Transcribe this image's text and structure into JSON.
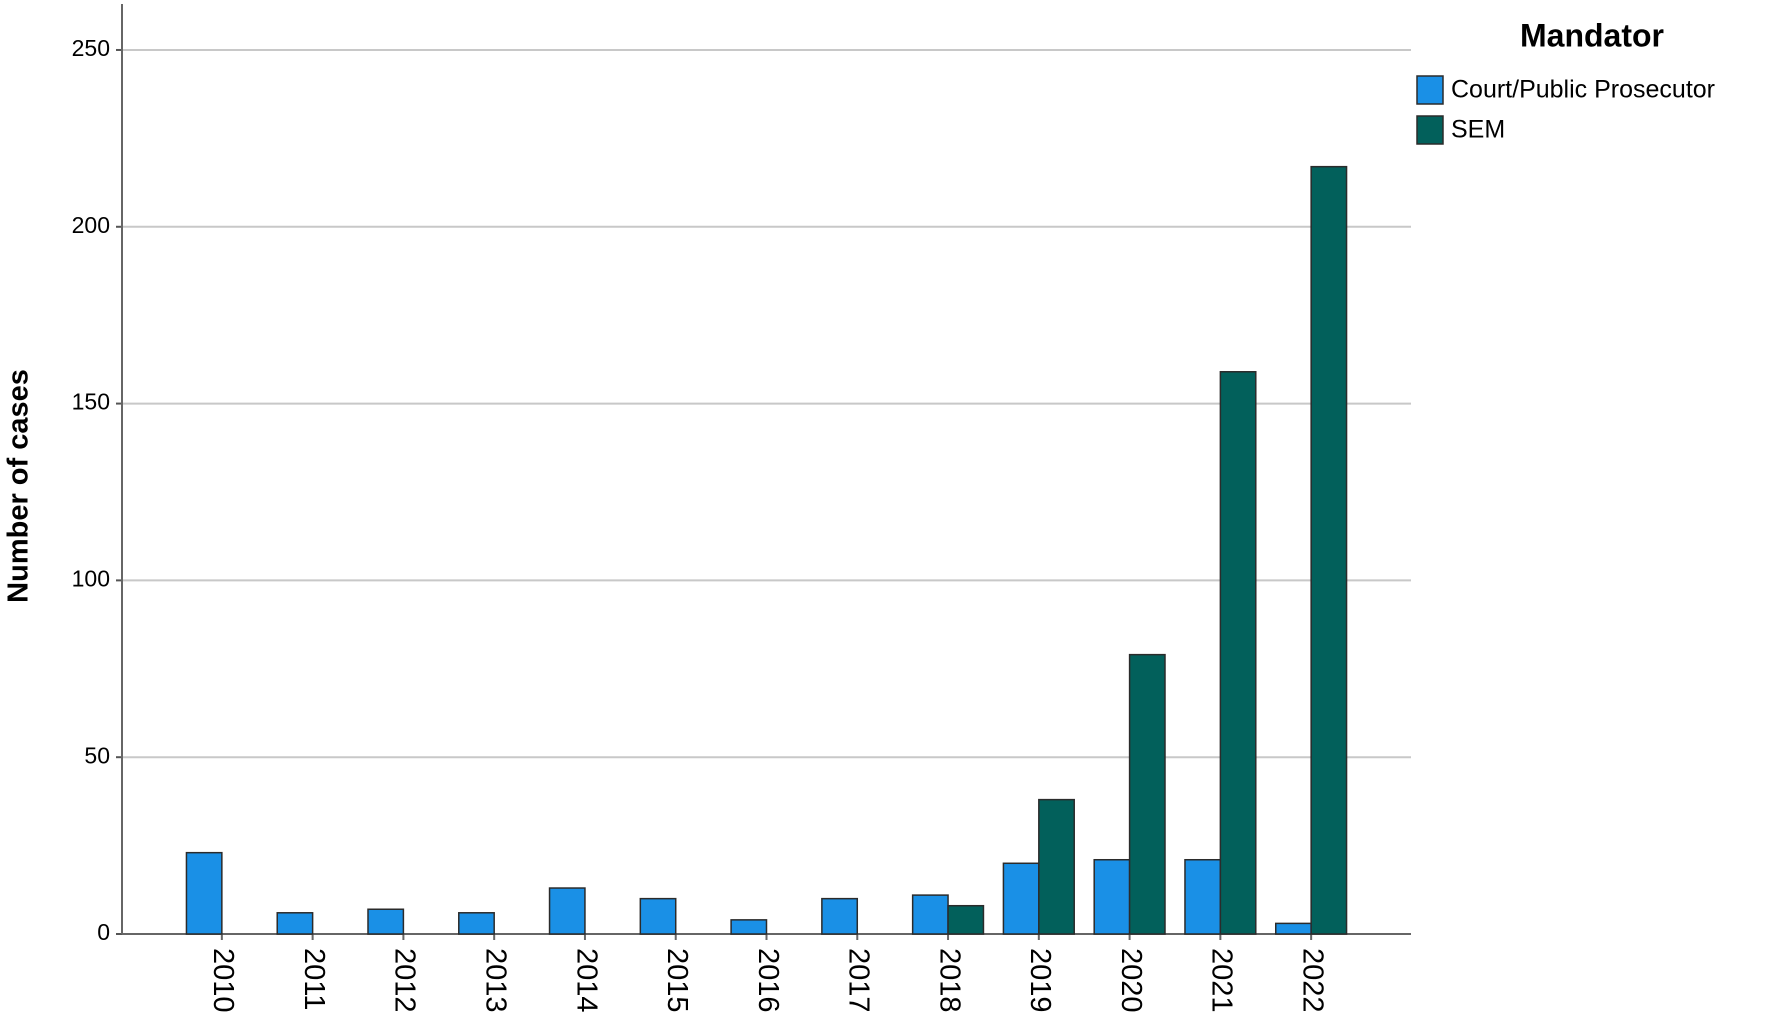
{
  "chart_data": {
    "type": "bar",
    "y_label": "Number of cases",
    "legend_title": "Mandator",
    "categories": [
      "2010",
      "2011",
      "2012",
      "2013",
      "2014",
      "2015",
      "2016",
      "2017",
      "2018",
      "2019",
      "2020",
      "2021",
      "2022"
    ],
    "series": [
      {
        "name": "Court/Public Prosecutor",
        "color": "#1a90e6",
        "values": [
          23,
          6,
          7,
          6,
          13,
          10,
          4,
          10,
          11,
          20,
          21,
          21,
          3
        ]
      },
      {
        "name": "SEM",
        "color": "#02605b",
        "values": [
          null,
          null,
          null,
          null,
          null,
          null,
          null,
          null,
          8,
          38,
          79,
          159,
          217
        ]
      }
    ],
    "ylim": [
      0,
      263
    ],
    "yticks": [
      0,
      50,
      100,
      150,
      200,
      250
    ],
    "grid": true,
    "legend": "right"
  }
}
